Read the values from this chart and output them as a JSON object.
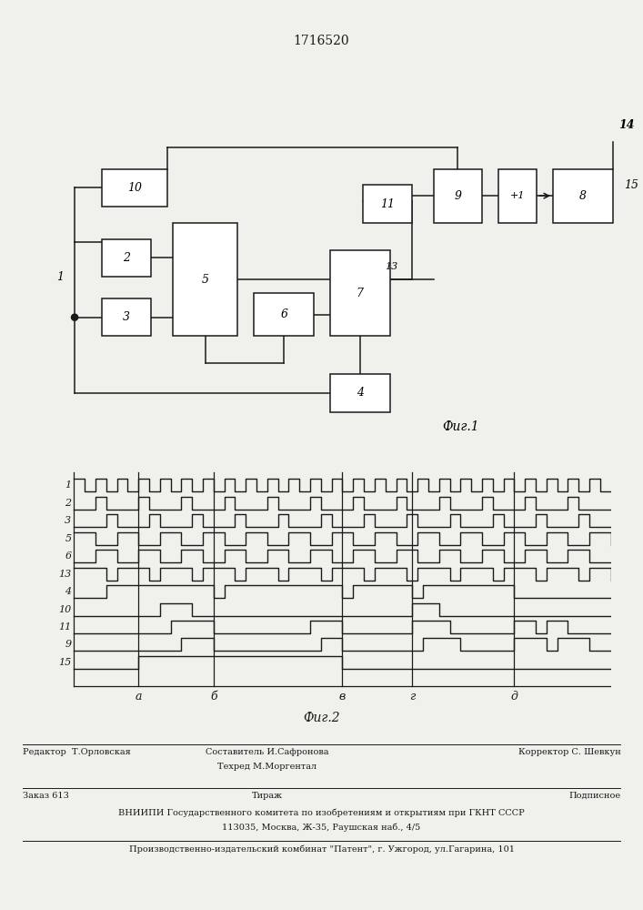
{
  "title": "1716520",
  "fig1_label": "Фиг.1",
  "fig2_label": "Фиг.2",
  "footer_line1_left": "Редактор  Т.Орловская",
  "footer_line1_center1": "Составитель И.Сафронова",
  "footer_line1_center2": "Техред М.Моргентал",
  "footer_line1_right": "Корректор С. Шевкун",
  "footer_line2_left": "Заказ 613",
  "footer_line2_center": "Тираж",
  "footer_line2_right": "Подписное",
  "footer_line3": "ВНИИПИ Государственного комитета по изобретениям и открытиям при ГКНТ СССР",
  "footer_line4": "113035, Москва, Ж-35, Раушская наб., 4/5",
  "footer_line5": "Производственно-издательский комбинат \"Патент\", г. Ужгород, ул.Гагарина, 101",
  "bg_color": "#f0f0ec",
  "line_color": "#1a1a1a",
  "timing_labels": [
    "1",
    "2",
    "3",
    "5",
    "6",
    "13",
    "4",
    "10",
    "11",
    "9",
    "15"
  ],
  "time_markers": [
    "а",
    "б",
    "в",
    "г",
    "д"
  ]
}
